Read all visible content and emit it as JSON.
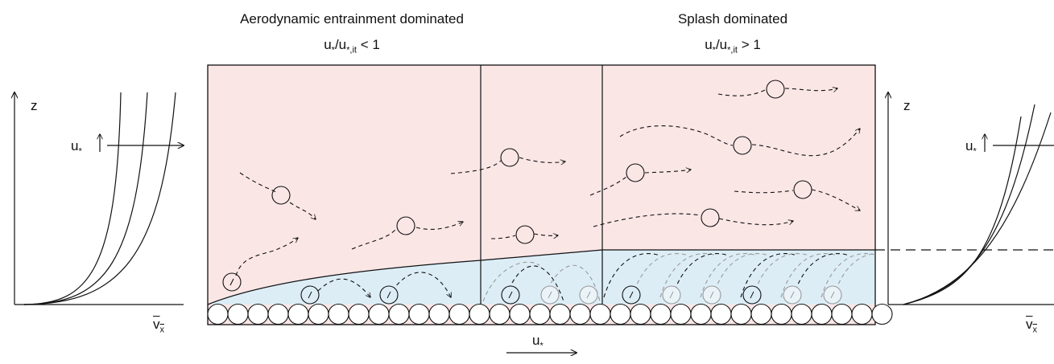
{
  "left_regime": {
    "title": "Aerodynamic entrainment dominated",
    "ratio_main": "u",
    "ratio_star": "*",
    "ratio_slash": "/u",
    "ratio_sub": "*,it",
    "ratio_rel": " < 1"
  },
  "right_regime": {
    "title": "Splash dominated",
    "ratio_main": "u",
    "ratio_star": "*",
    "ratio_slash": "/u",
    "ratio_sub": "*,it",
    "ratio_rel": " > 1"
  },
  "left_profile": {
    "z_label": "z",
    "u_label": "u",
    "u_star": "*",
    "x_label": "v",
    "x_sub": "x"
  },
  "right_profile": {
    "z_label": "z",
    "u_label": "u",
    "u_star": "*",
    "x_label": "v",
    "x_sub": "x"
  },
  "bottom_arrow": {
    "label": "u",
    "label_star": "*"
  },
  "colors": {
    "air_region": "#fbe6e6",
    "saltation_layer": "#dcedf6",
    "stroke": "#111111",
    "faded_grain": "#9a9a9a"
  }
}
